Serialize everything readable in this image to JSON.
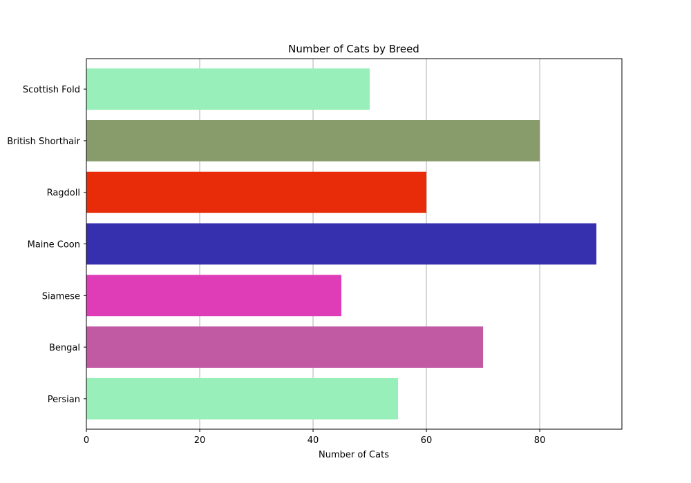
{
  "chart_data": {
    "type": "bar",
    "orientation": "horizontal",
    "title": "Number of Cats by Breed",
    "xlabel": "Number of Cats",
    "ylabel": "",
    "categories": [
      "Persian",
      "Bengal",
      "Siamese",
      "Maine Coon",
      "Ragdoll",
      "British Shorthair",
      "Scottish Fold"
    ],
    "values": [
      55,
      70,
      45,
      90,
      60,
      80,
      50
    ],
    "colors": [
      "#99efb9",
      "#c259a3",
      "#df3db7",
      "#362fae",
      "#e82c09",
      "#889b6a",
      "#99efb9"
    ],
    "xlim": [
      0,
      94.5
    ],
    "xticks": [
      0,
      20,
      40,
      60,
      80
    ],
    "grid": "x-axis vertical lines",
    "legend": "none"
  }
}
